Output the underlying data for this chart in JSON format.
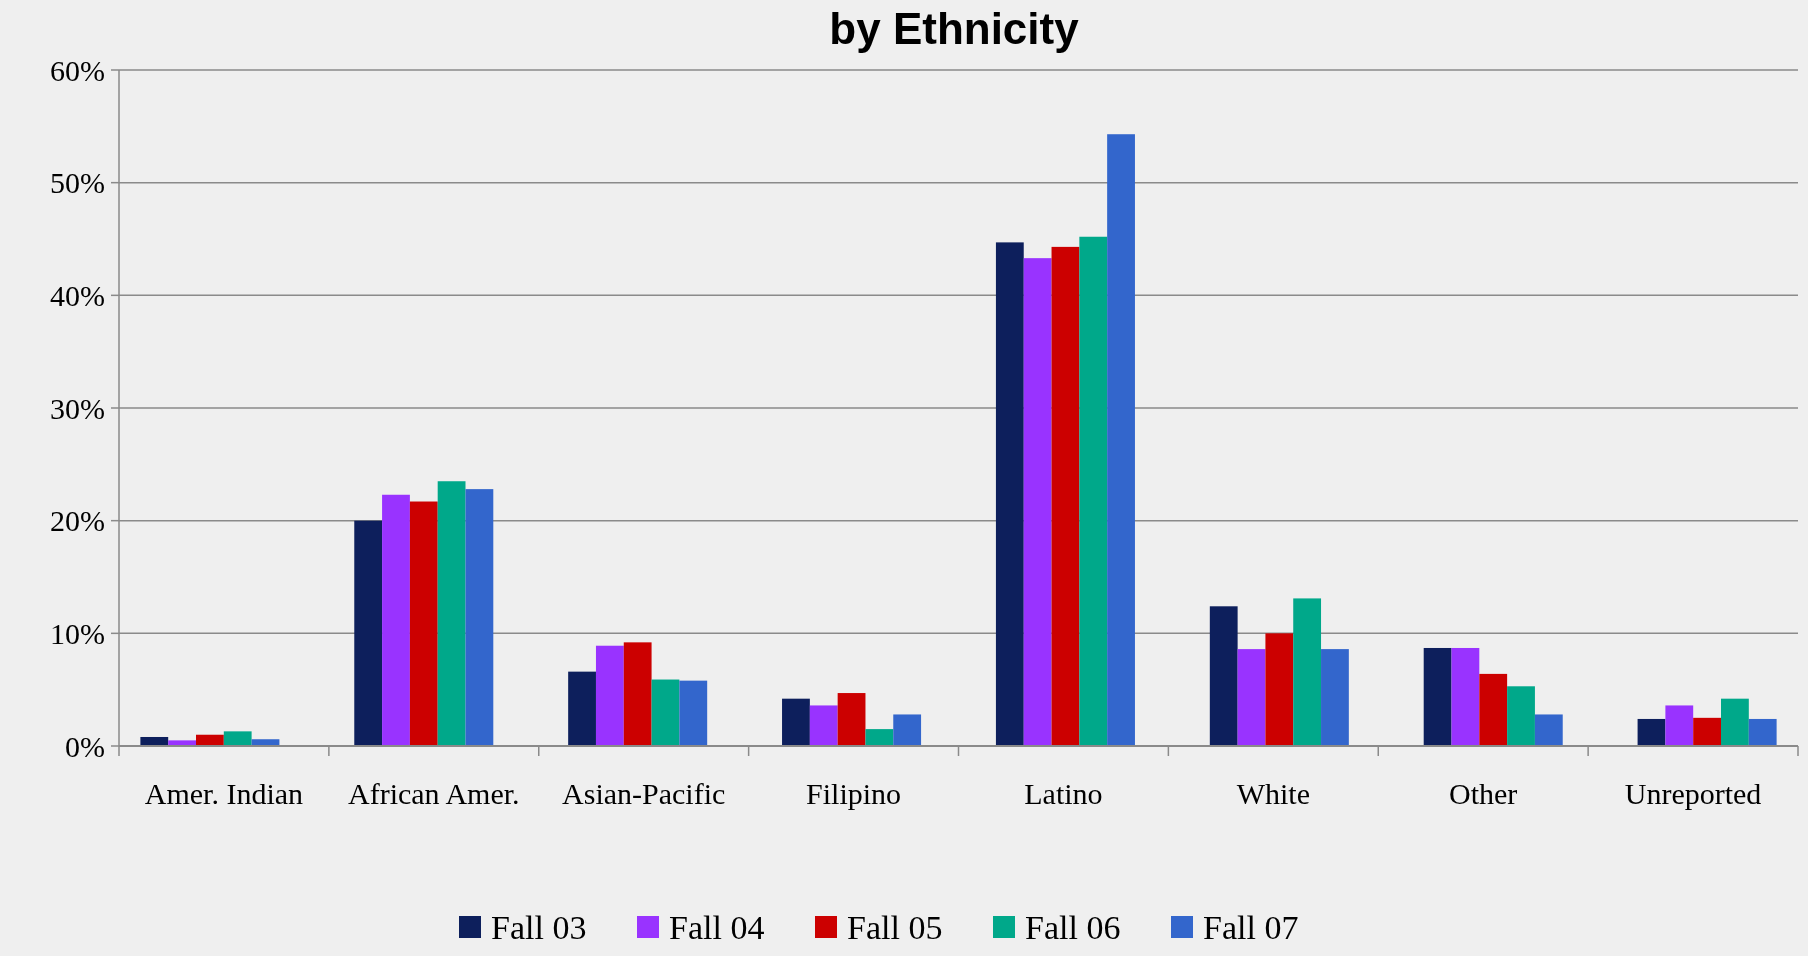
{
  "chart_data": {
    "type": "bar",
    "title": "by Ethnicity",
    "categories": [
      "Amer. Indian",
      "African Amer.",
      "Asian-Pacific",
      "Filipino",
      "Latino",
      "White",
      "Other",
      "Unreported"
    ],
    "series": [
      {
        "name": "Fall 03",
        "color": "#0d1f5c",
        "values": [
          0.8,
          20.0,
          6.6,
          4.2,
          44.7,
          12.4,
          8.7,
          2.4
        ]
      },
      {
        "name": "Fall 04",
        "color": "#9933ff",
        "values": [
          0.5,
          22.3,
          8.9,
          3.6,
          43.3,
          8.6,
          8.7,
          3.6
        ]
      },
      {
        "name": "Fall 05",
        "color": "#cc0000",
        "values": [
          1.0,
          21.7,
          9.2,
          4.7,
          44.3,
          10.0,
          6.4,
          2.5
        ]
      },
      {
        "name": "Fall 06",
        "color": "#00a88a",
        "values": [
          1.3,
          23.5,
          5.9,
          1.5,
          45.2,
          13.1,
          5.3,
          4.2
        ]
      },
      {
        "name": "Fall 07",
        "color": "#3366cc",
        "values": [
          0.6,
          22.8,
          5.8,
          2.8,
          54.3,
          8.6,
          2.8,
          2.4
        ]
      }
    ],
    "ylim": [
      0,
      60
    ],
    "yticks": [
      {
        "value": 0,
        "label": "0%"
      },
      {
        "value": 10,
        "label": "10%"
      },
      {
        "value": 20,
        "label": "20%"
      },
      {
        "value": 30,
        "label": "30%"
      },
      {
        "value": 40,
        "label": "40%"
      },
      {
        "value": 50,
        "label": "50%"
      },
      {
        "value": 60,
        "label": "60%"
      }
    ],
    "grid": "y",
    "legend": "bottom"
  }
}
